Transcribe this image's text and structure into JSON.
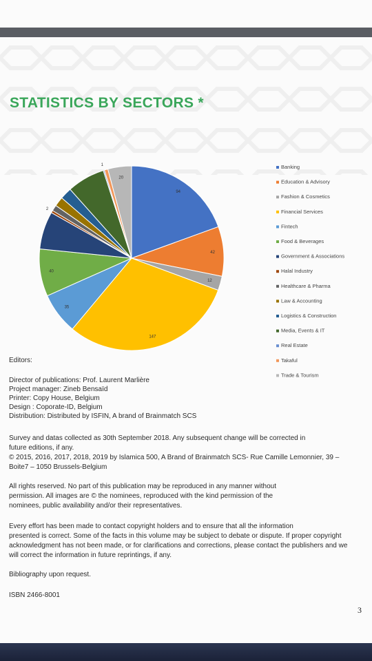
{
  "chart_data": {
    "type": "pie",
    "title": "STATISTICS BY SECTORS *",
    "categories": [
      "Banking",
      "Education & Advisory",
      "Fashion & Cosmetics",
      "Financial Services",
      "Fintech",
      "Food & Beverages",
      "Government & Associations",
      "Halal Industry",
      "Healthcare & Pharma",
      "Law & Accounting",
      "Logistics & Construction",
      "Media, Events & IT",
      "Real Estate",
      "Takaful",
      "Trade & Tourism"
    ],
    "values": [
      94,
      42,
      12,
      147,
      35,
      40,
      32,
      2,
      5,
      8,
      10,
      32,
      1,
      3,
      20
    ],
    "value_labels": [
      "94",
      "42",
      "12",
      "147",
      "35",
      "40",
      null,
      "2",
      null,
      null,
      null,
      null,
      "1",
      null,
      "20"
    ],
    "colors": [
      "#4472c4",
      "#ed7d31",
      "#a5a5a5",
      "#ffc000",
      "#5b9bd5",
      "#70ad47",
      "#264478",
      "#9e480e",
      "#636363",
      "#997300",
      "#255e91",
      "#43682b",
      "#698ed0",
      "#f1975a",
      "#b7b7b7"
    ],
    "legend": "right"
  },
  "document": {
    "editors_heading": "Editors:",
    "credits": [
      "Director of publications: Prof. Laurent Marlière",
      "Project manager: Zineb Bensaïd",
      "Printer: Copy House, Belgium",
      "Design : Coporate-ID, Belgium",
      "Distribution: Distributed by ISFIN, A brand of Brainmatch SCS"
    ],
    "paragraphs": [
      [
        "Survey and datas collected as 30th September 2018. Any subsequent change will be corrected in",
        "future editions, if any.",
        "© 2015, 2016, 2017, 2018, 2019 by Islamica 500, A Brand of Brainmatch SCS- Rue Camille Lemonnier, 39 –",
        "Boite7 – 1050 Brussels-Belgium"
      ],
      [
        "All rights reserved. No part of this publication may be reproduced in any manner without",
        "permission. All images are © the nominees, reproduced with the kind permission of the",
        "nominees, public availability and/or their representatives."
      ],
      [
        "Every effort has been made to contact copyright holders and to ensure that all the information",
        "presented is correct. Some of the facts in this volume may be subject to debate or dispute. If proper copyright",
        "acknowledgment has not been made, or for clarifications and corrections, please contact the publishers and we",
        "will correct the information in future reprintings, if any."
      ],
      [
        "Bibliography upon request."
      ],
      [
        "ISBN 2466-8001"
      ]
    ],
    "page_number": "3"
  }
}
